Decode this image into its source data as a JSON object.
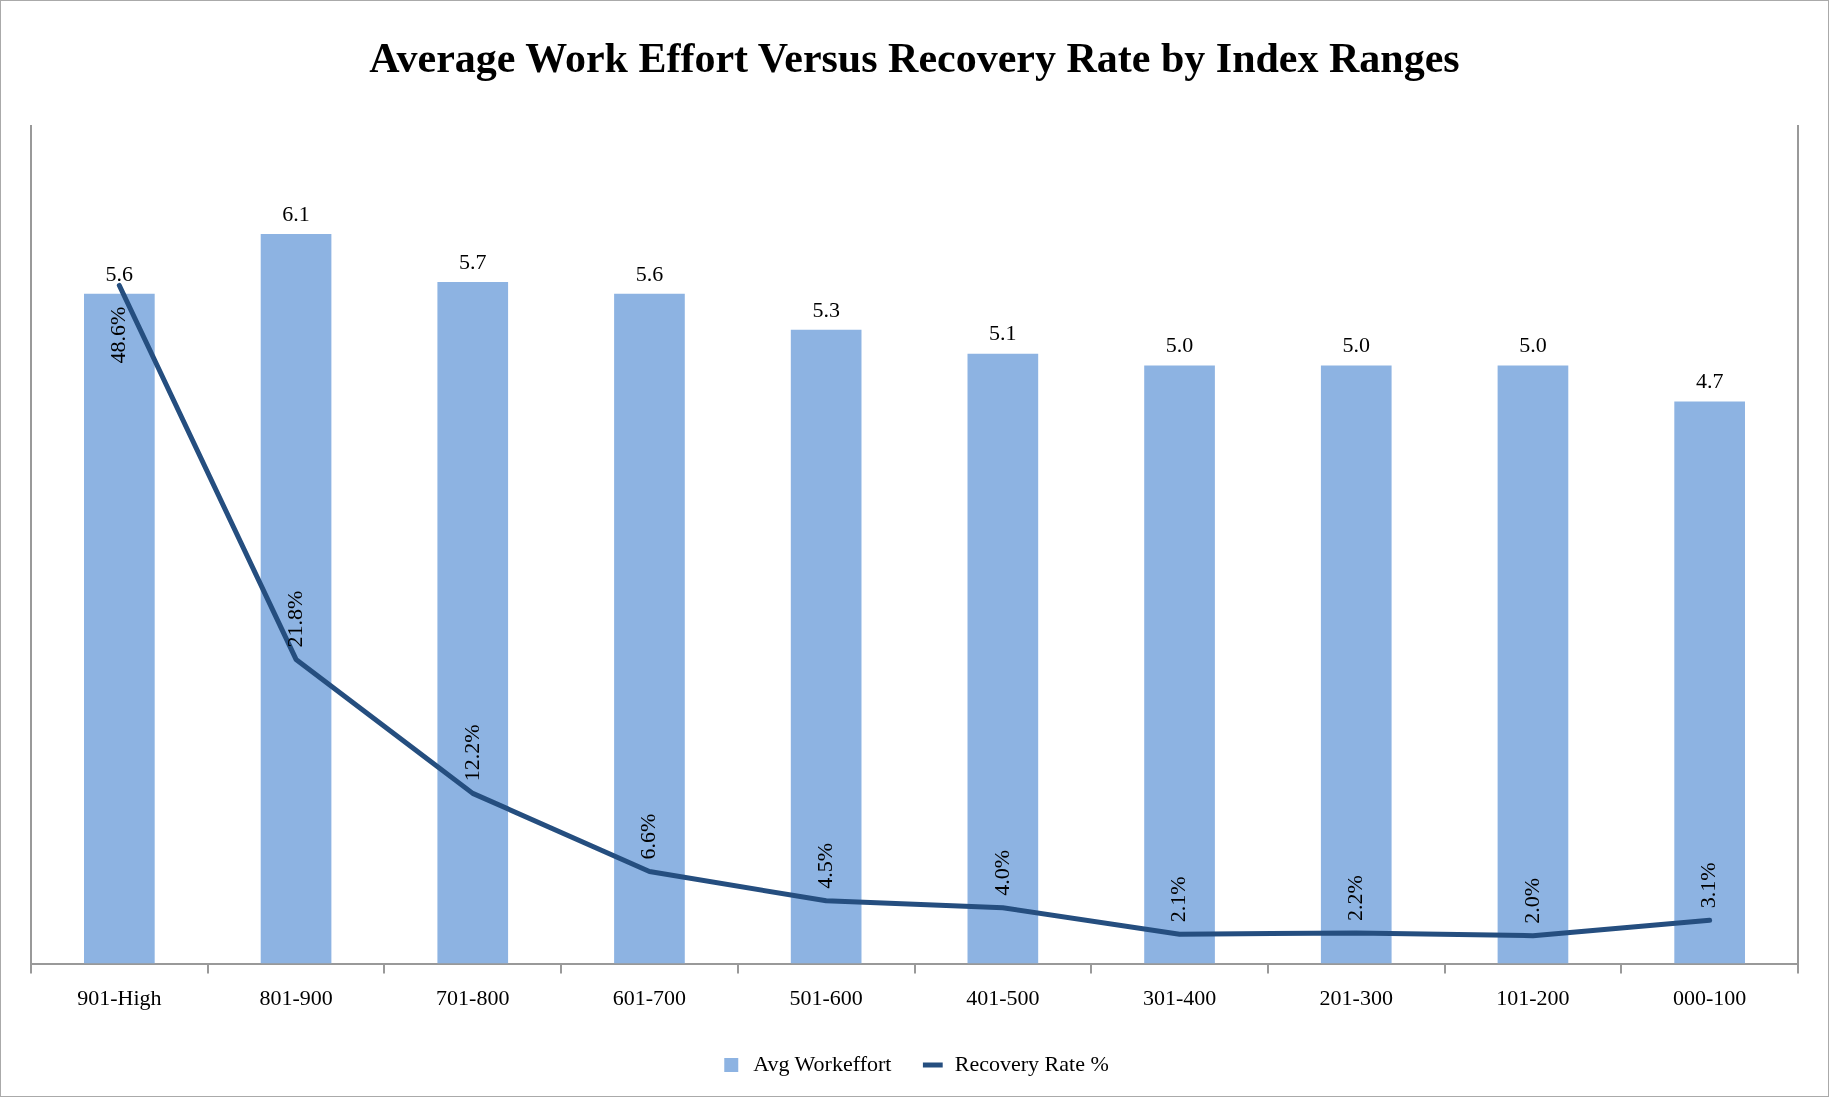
{
  "chart_data": {
    "type": "bar",
    "title": "Average Work Effort Versus Recovery Rate by Index Ranges",
    "categories": [
      "901-High",
      "801-900",
      "701-800",
      "601-700",
      "501-600",
      "401-500",
      "301-400",
      "201-300",
      "101-200",
      "000-100"
    ],
    "series": [
      {
        "name": "Avg Workeffort",
        "color": "#8db3e2",
        "values": [
          5.6,
          6.1,
          5.7,
          5.6,
          5.3,
          5.1,
          5.0,
          5.0,
          5.0,
          4.7
        ],
        "value_labels": [
          "5.6",
          "6.1",
          "5.7",
          "5.6",
          "5.3",
          "5.1",
          "5.0",
          "5.0",
          "5.0",
          "4.7"
        ]
      },
      {
        "name": "Recovery Rate %",
        "type": "line",
        "axis": "y2",
        "color": "#254e7f",
        "values": [
          48.6,
          21.8,
          12.2,
          6.6,
          4.5,
          4.0,
          2.1,
          2.2,
          2.0,
          3.1
        ],
        "value_labels": [
          "48.6%",
          "21.8%",
          "12.2%",
          "6.6%",
          "4.5%",
          "4.0%",
          "2.1%",
          "2.2%",
          "2.0%",
          "3.1%"
        ]
      }
    ],
    "ylim": [
      0,
      7
    ],
    "y2lim": [
      0,
      60
    ],
    "tick_labels": "x",
    "grid": false,
    "legend": "bottom",
    "marker": "none",
    "line_style": "solid"
  }
}
